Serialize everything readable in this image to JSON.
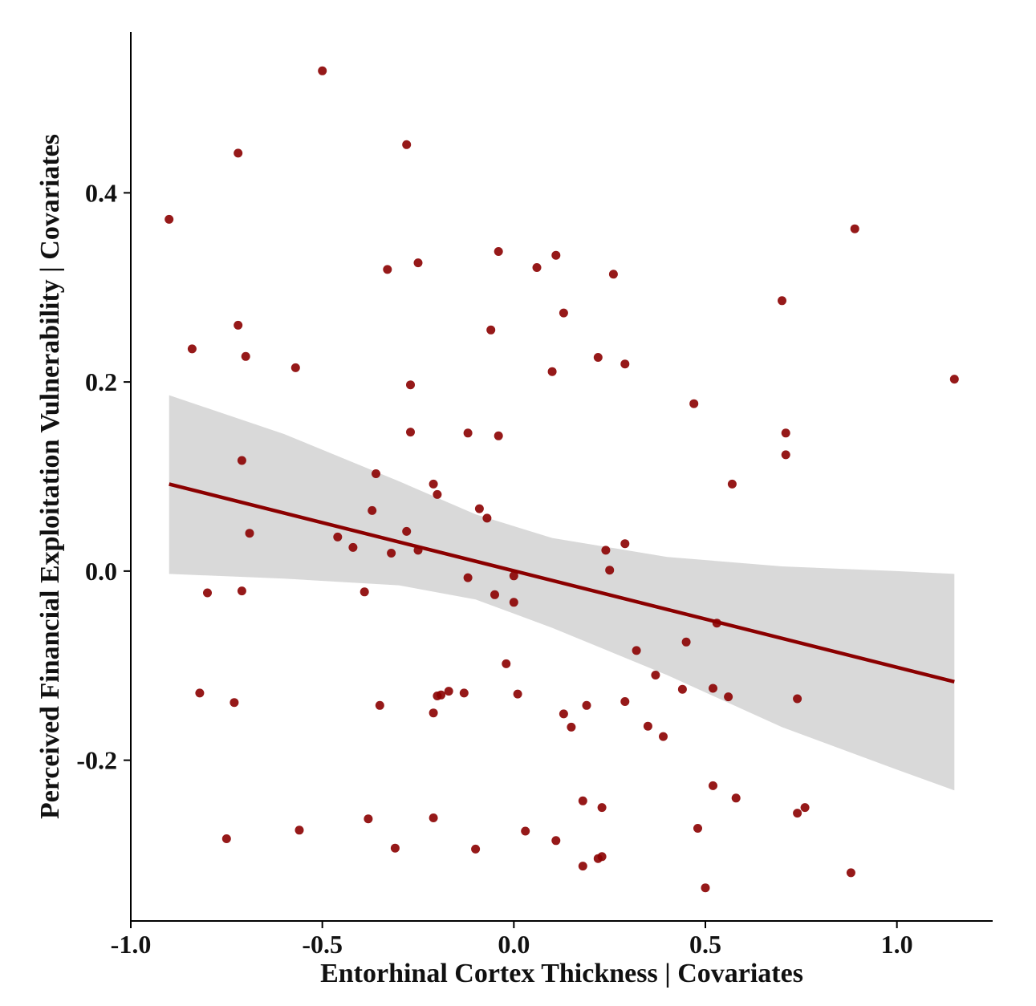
{
  "chart_data": {
    "type": "scatter",
    "title": "",
    "xlabel": "Entorhinal Cortex Thickness | Covariates",
    "ylabel": "Perceived Financial Exploitation Vulnerability | Covariates",
    "xlim": [
      -1.0,
      1.25
    ],
    "ylim": [
      -0.37,
      0.57
    ],
    "x_ticks": [
      -1.0,
      -0.5,
      0.0,
      0.5,
      1.0
    ],
    "x_tick_labels": [
      "-1.0",
      "-0.5",
      "0.0",
      "0.5",
      "1.0"
    ],
    "y_ticks": [
      -0.2,
      0.0,
      0.2,
      0.4
    ],
    "y_tick_labels": [
      "-0.2",
      "0.0",
      "0.2",
      "0.4"
    ],
    "grid": false,
    "colors": {
      "points": "#8b0000",
      "line": "#8b0000",
      "band": "#d9d9d9",
      "axis": "#000000"
    },
    "points": [
      {
        "x": -0.9,
        "y": 0.372
      },
      {
        "x": -0.84,
        "y": 0.235
      },
      {
        "x": -0.82,
        "y": -0.129
      },
      {
        "x": -0.8,
        "y": -0.023
      },
      {
        "x": -0.75,
        "y": -0.283
      },
      {
        "x": -0.73,
        "y": -0.139
      },
      {
        "x": -0.72,
        "y": 0.442
      },
      {
        "x": -0.72,
        "y": 0.26
      },
      {
        "x": -0.71,
        "y": 0.117
      },
      {
        "x": -0.71,
        "y": -0.021
      },
      {
        "x": -0.7,
        "y": 0.227
      },
      {
        "x": -0.69,
        "y": 0.04
      },
      {
        "x": -0.57,
        "y": 0.215
      },
      {
        "x": -0.56,
        "y": -0.274
      },
      {
        "x": -0.5,
        "y": 0.529
      },
      {
        "x": -0.46,
        "y": 0.036
      },
      {
        "x": -0.42,
        "y": 0.025
      },
      {
        "x": -0.39,
        "y": -0.022
      },
      {
        "x": -0.38,
        "y": -0.262
      },
      {
        "x": -0.37,
        "y": 0.064
      },
      {
        "x": -0.36,
        "y": 0.103
      },
      {
        "x": -0.35,
        "y": -0.142
      },
      {
        "x": -0.33,
        "y": 0.319
      },
      {
        "x": -0.32,
        "y": 0.019
      },
      {
        "x": -0.31,
        "y": -0.293
      },
      {
        "x": -0.28,
        "y": 0.451
      },
      {
        "x": -0.28,
        "y": 0.042
      },
      {
        "x": -0.27,
        "y": 0.147
      },
      {
        "x": -0.27,
        "y": 0.197
      },
      {
        "x": -0.25,
        "y": 0.326
      },
      {
        "x": -0.25,
        "y": 0.022
      },
      {
        "x": -0.21,
        "y": -0.15
      },
      {
        "x": -0.21,
        "y": 0.092
      },
      {
        "x": -0.21,
        "y": -0.261
      },
      {
        "x": -0.2,
        "y": 0.081
      },
      {
        "x": -0.2,
        "y": -0.132
      },
      {
        "x": -0.19,
        "y": -0.131
      },
      {
        "x": -0.17,
        "y": -0.127
      },
      {
        "x": -0.13,
        "y": -0.129
      },
      {
        "x": -0.12,
        "y": 0.146
      },
      {
        "x": -0.12,
        "y": -0.007
      },
      {
        "x": -0.1,
        "y": -0.294
      },
      {
        "x": -0.09,
        "y": 0.066
      },
      {
        "x": -0.07,
        "y": 0.056
      },
      {
        "x": -0.06,
        "y": 0.255
      },
      {
        "x": -0.05,
        "y": -0.025
      },
      {
        "x": -0.04,
        "y": 0.338
      },
      {
        "x": -0.04,
        "y": 0.143
      },
      {
        "x": -0.02,
        "y": -0.098
      },
      {
        "x": 0.0,
        "y": -0.033
      },
      {
        "x": 0.0,
        "y": -0.005
      },
      {
        "x": 0.01,
        "y": -0.13
      },
      {
        "x": 0.03,
        "y": -0.275
      },
      {
        "x": 0.06,
        "y": 0.321
      },
      {
        "x": 0.1,
        "y": 0.211
      },
      {
        "x": 0.11,
        "y": 0.334
      },
      {
        "x": 0.11,
        "y": -0.285
      },
      {
        "x": 0.13,
        "y": 0.273
      },
      {
        "x": 0.13,
        "y": -0.151
      },
      {
        "x": 0.15,
        "y": -0.165
      },
      {
        "x": 0.18,
        "y": -0.243
      },
      {
        "x": 0.18,
        "y": -0.312
      },
      {
        "x": 0.19,
        "y": -0.142
      },
      {
        "x": 0.22,
        "y": 0.226
      },
      {
        "x": 0.22,
        "y": -0.304
      },
      {
        "x": 0.23,
        "y": -0.302
      },
      {
        "x": 0.23,
        "y": -0.25
      },
      {
        "x": 0.24,
        "y": 0.022
      },
      {
        "x": 0.25,
        "y": 0.001
      },
      {
        "x": 0.26,
        "y": 0.314
      },
      {
        "x": 0.29,
        "y": 0.219
      },
      {
        "x": 0.29,
        "y": 0.029
      },
      {
        "x": 0.29,
        "y": -0.138
      },
      {
        "x": 0.32,
        "y": -0.084
      },
      {
        "x": 0.35,
        "y": -0.164
      },
      {
        "x": 0.37,
        "y": -0.11
      },
      {
        "x": 0.39,
        "y": -0.175
      },
      {
        "x": 0.44,
        "y": -0.125
      },
      {
        "x": 0.45,
        "y": -0.075
      },
      {
        "x": 0.47,
        "y": 0.177
      },
      {
        "x": 0.48,
        "y": -0.272
      },
      {
        "x": 0.5,
        "y": -0.335
      },
      {
        "x": 0.52,
        "y": -0.227
      },
      {
        "x": 0.52,
        "y": -0.124
      },
      {
        "x": 0.53,
        "y": -0.055
      },
      {
        "x": 0.56,
        "y": -0.133
      },
      {
        "x": 0.57,
        "y": 0.092
      },
      {
        "x": 0.58,
        "y": -0.24
      },
      {
        "x": 0.7,
        "y": 0.286
      },
      {
        "x": 0.71,
        "y": 0.146
      },
      {
        "x": 0.71,
        "y": 0.123
      },
      {
        "x": 0.74,
        "y": -0.135
      },
      {
        "x": 0.74,
        "y": -0.256
      },
      {
        "x": 0.76,
        "y": -0.25
      },
      {
        "x": 0.88,
        "y": -0.319
      },
      {
        "x": 0.89,
        "y": 0.362
      },
      {
        "x": 1.15,
        "y": 0.203
      }
    ],
    "fit_line": {
      "x": [
        -0.9,
        1.15
      ],
      "y": [
        0.092,
        -0.117
      ]
    },
    "confidence_band": {
      "x": [
        -0.9,
        -0.6,
        -0.3,
        -0.1,
        0.1,
        0.4,
        0.7,
        1.0,
        1.15
      ],
      "upper": [
        0.186,
        0.145,
        0.095,
        0.06,
        0.035,
        0.015,
        0.005,
        0.0,
        -0.003
      ],
      "lower": [
        -0.003,
        -0.008,
        -0.015,
        -0.03,
        -0.06,
        -0.11,
        -0.165,
        -0.21,
        -0.232
      ]
    }
  }
}
